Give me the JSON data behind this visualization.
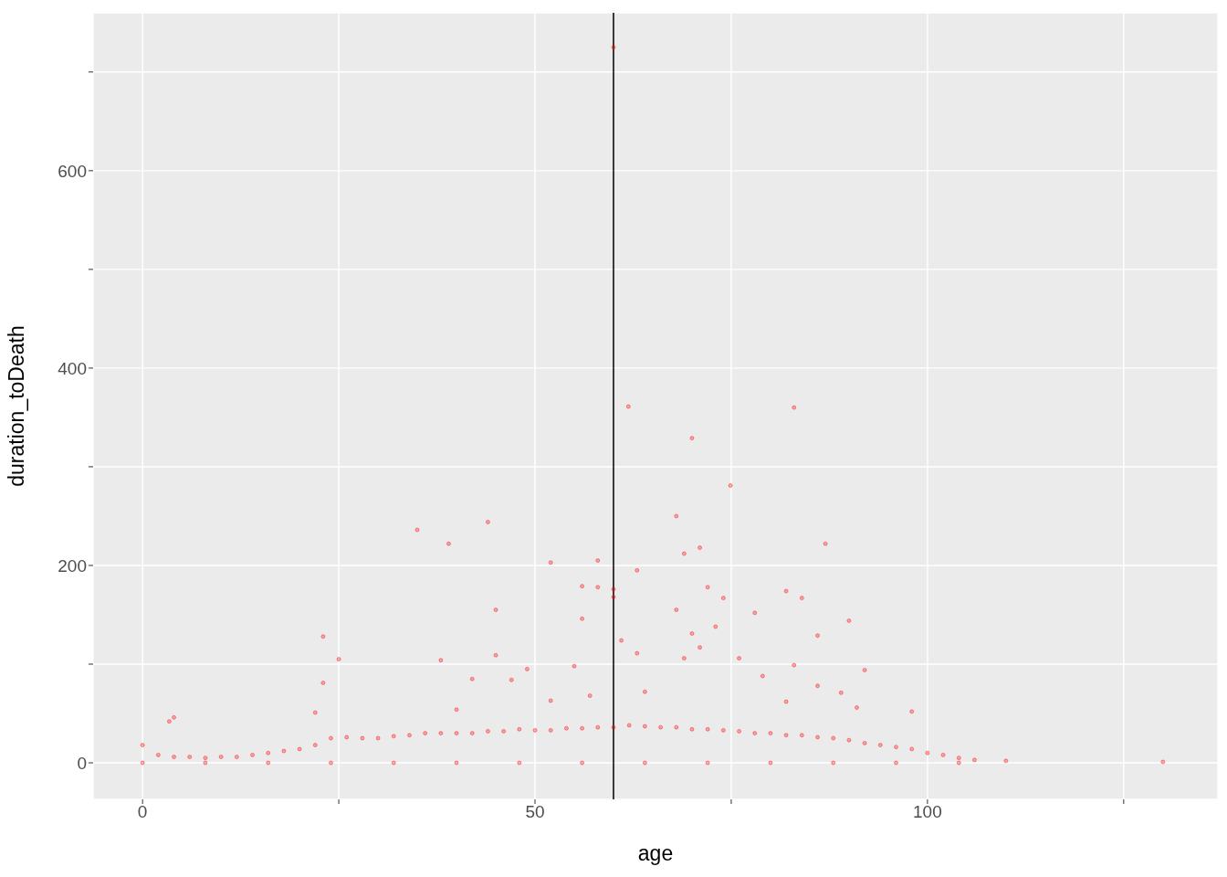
{
  "chart_data": {
    "type": "scatter",
    "xlabel": "age",
    "ylabel": "duration_toDeath",
    "xlim": [
      -6.3,
      137
    ],
    "ylim": [
      -37,
      760
    ],
    "xticks": [
      0,
      {
        "value": 25,
        "label": null
      },
      50,
      {
        "value": 75,
        "label": null
      },
      100,
      {
        "value": 125,
        "label": null
      }
    ],
    "yticks": [
      0,
      {
        "value": 100,
        "label": null
      },
      200,
      {
        "value": 300,
        "label": null
      },
      400,
      {
        "value": 500,
        "label": null
      },
      600,
      {
        "value": 700,
        "label": null
      }
    ],
    "grid": true,
    "marker": "circle",
    "ref_lines": [
      {
        "axis": "x",
        "value": 60,
        "color": "#000000"
      }
    ],
    "series": [
      {
        "color": "#ff0000",
        "x": [
          0,
          2,
          4,
          6,
          8,
          10,
          12,
          14,
          16,
          18,
          20,
          22,
          24,
          26,
          28,
          30,
          32,
          34,
          36,
          38,
          40,
          42,
          44,
          46,
          48,
          50,
          52,
          54,
          56,
          58,
          60,
          62,
          64,
          66,
          68,
          70,
          72,
          74,
          76,
          78,
          80,
          82,
          84,
          86,
          88,
          90,
          92,
          94,
          96,
          98,
          100,
          102,
          104,
          106,
          0,
          8,
          16,
          24,
          32,
          40,
          48,
          56,
          64,
          72,
          80,
          88,
          96,
          104,
          60,
          61.9,
          83,
          70,
          74.9,
          35,
          44,
          39,
          52,
          58,
          68,
          71,
          69,
          87,
          63,
          56,
          58,
          60,
          60,
          72,
          74,
          82,
          84,
          45,
          68,
          78,
          56,
          90,
          23,
          70,
          86,
          73,
          71,
          61,
          25,
          38,
          45,
          63,
          76,
          83,
          69,
          49,
          55,
          92,
          23,
          42,
          47,
          79,
          86,
          89,
          98,
          3.4,
          4,
          22,
          40,
          52,
          57,
          64,
          82,
          91,
          130,
          110
        ],
        "values": [
          18,
          8,
          6,
          6,
          5,
          6,
          6,
          8,
          10,
          12,
          14,
          18,
          25,
          26,
          25,
          25,
          27,
          28,
          30,
          30,
          30,
          30,
          32,
          32,
          34,
          33,
          33,
          35,
          35,
          36,
          36,
          38,
          37,
          36,
          36,
          34,
          34,
          33,
          32,
          30,
          30,
          28,
          28,
          26,
          25,
          23,
          20,
          18,
          16,
          14,
          10,
          8,
          5,
          3,
          0,
          0,
          0,
          0,
          0,
          0,
          0,
          0,
          0,
          0,
          0,
          0,
          0,
          0,
          725,
          361,
          360,
          329,
          281,
          236,
          244,
          222,
          203,
          205,
          250,
          218,
          212,
          222,
          195,
          179,
          178,
          176,
          168,
          178,
          167,
          174,
          167,
          155,
          155,
          152,
          146,
          144,
          128,
          131,
          129,
          138,
          117,
          124,
          105,
          104,
          109,
          111,
          106,
          99,
          106,
          95,
          98,
          94,
          81,
          85,
          84,
          88,
          78,
          71,
          52,
          42,
          46,
          51,
          54,
          63,
          68,
          72,
          62,
          56,
          1,
          2
        ]
      }
    ]
  }
}
